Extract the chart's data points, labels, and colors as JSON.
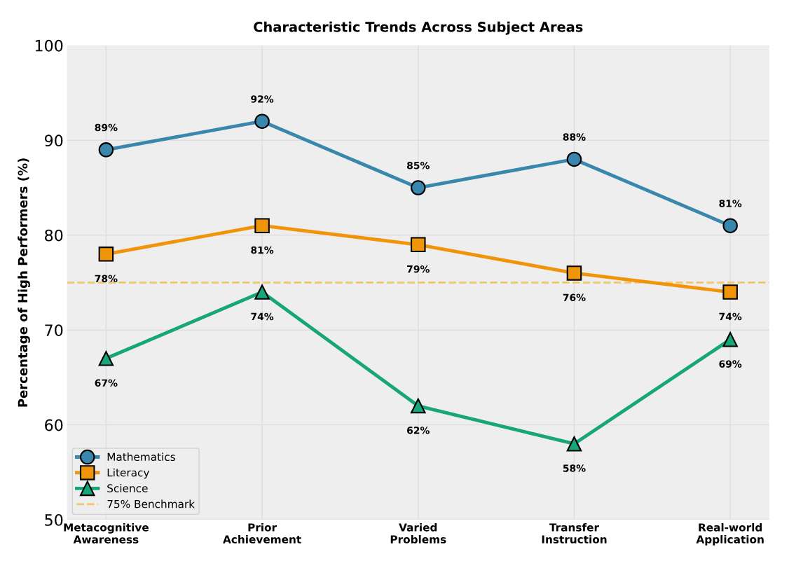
{
  "chart_data": {
    "type": "line",
    "title": "Characteristic Trends Across Subject Areas",
    "ylabel": "Percentage of High Performers (%)",
    "categories": [
      "Metacognitive\nAwareness",
      "Prior\nAchievement",
      "Varied\nProblems",
      "Transfer\nInstruction",
      "Real-world\nApplication"
    ],
    "series": [
      {
        "name": "Mathematics",
        "color": "#3a87ad",
        "marker": "circle",
        "values": [
          89,
          92,
          85,
          88,
          81
        ],
        "value_labels": [
          "89%",
          "92%",
          "85%",
          "88%",
          "81%"
        ]
      },
      {
        "name": "Literacy",
        "color": "#f0940a",
        "marker": "square",
        "values": [
          78,
          81,
          79,
          76,
          74
        ],
        "value_labels": [
          "78%",
          "81%",
          "79%",
          "76%",
          "74%"
        ]
      },
      {
        "name": "Science",
        "color": "#17a57a",
        "marker": "triangle",
        "values": [
          67,
          74,
          62,
          58,
          69
        ],
        "value_labels": [
          "67%",
          "74%",
          "62%",
          "58%",
          "69%"
        ]
      }
    ],
    "ref_lines": [
      {
        "axis": "y",
        "value": 75,
        "label": "75% Benchmark",
        "color": "#f5c46a",
        "line_style": "dashed"
      }
    ],
    "ylim": [
      50,
      100
    ],
    "yticks": [
      50,
      60,
      70,
      80,
      90,
      100
    ],
    "grid": true,
    "legend": "lower left",
    "line_style": "solid"
  }
}
